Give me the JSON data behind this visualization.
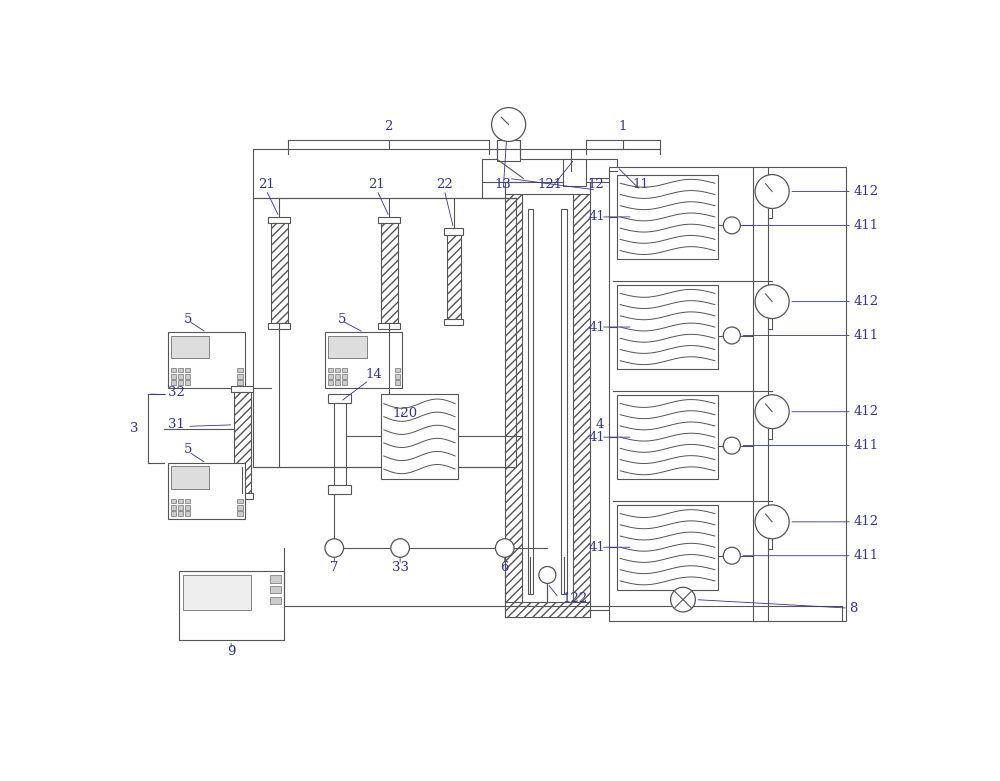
{
  "bg_color": "#ffffff",
  "line_color": "#555555",
  "label_color": "#333399",
  "figsize": [
    10.0,
    7.81
  ],
  "dpi": 100
}
